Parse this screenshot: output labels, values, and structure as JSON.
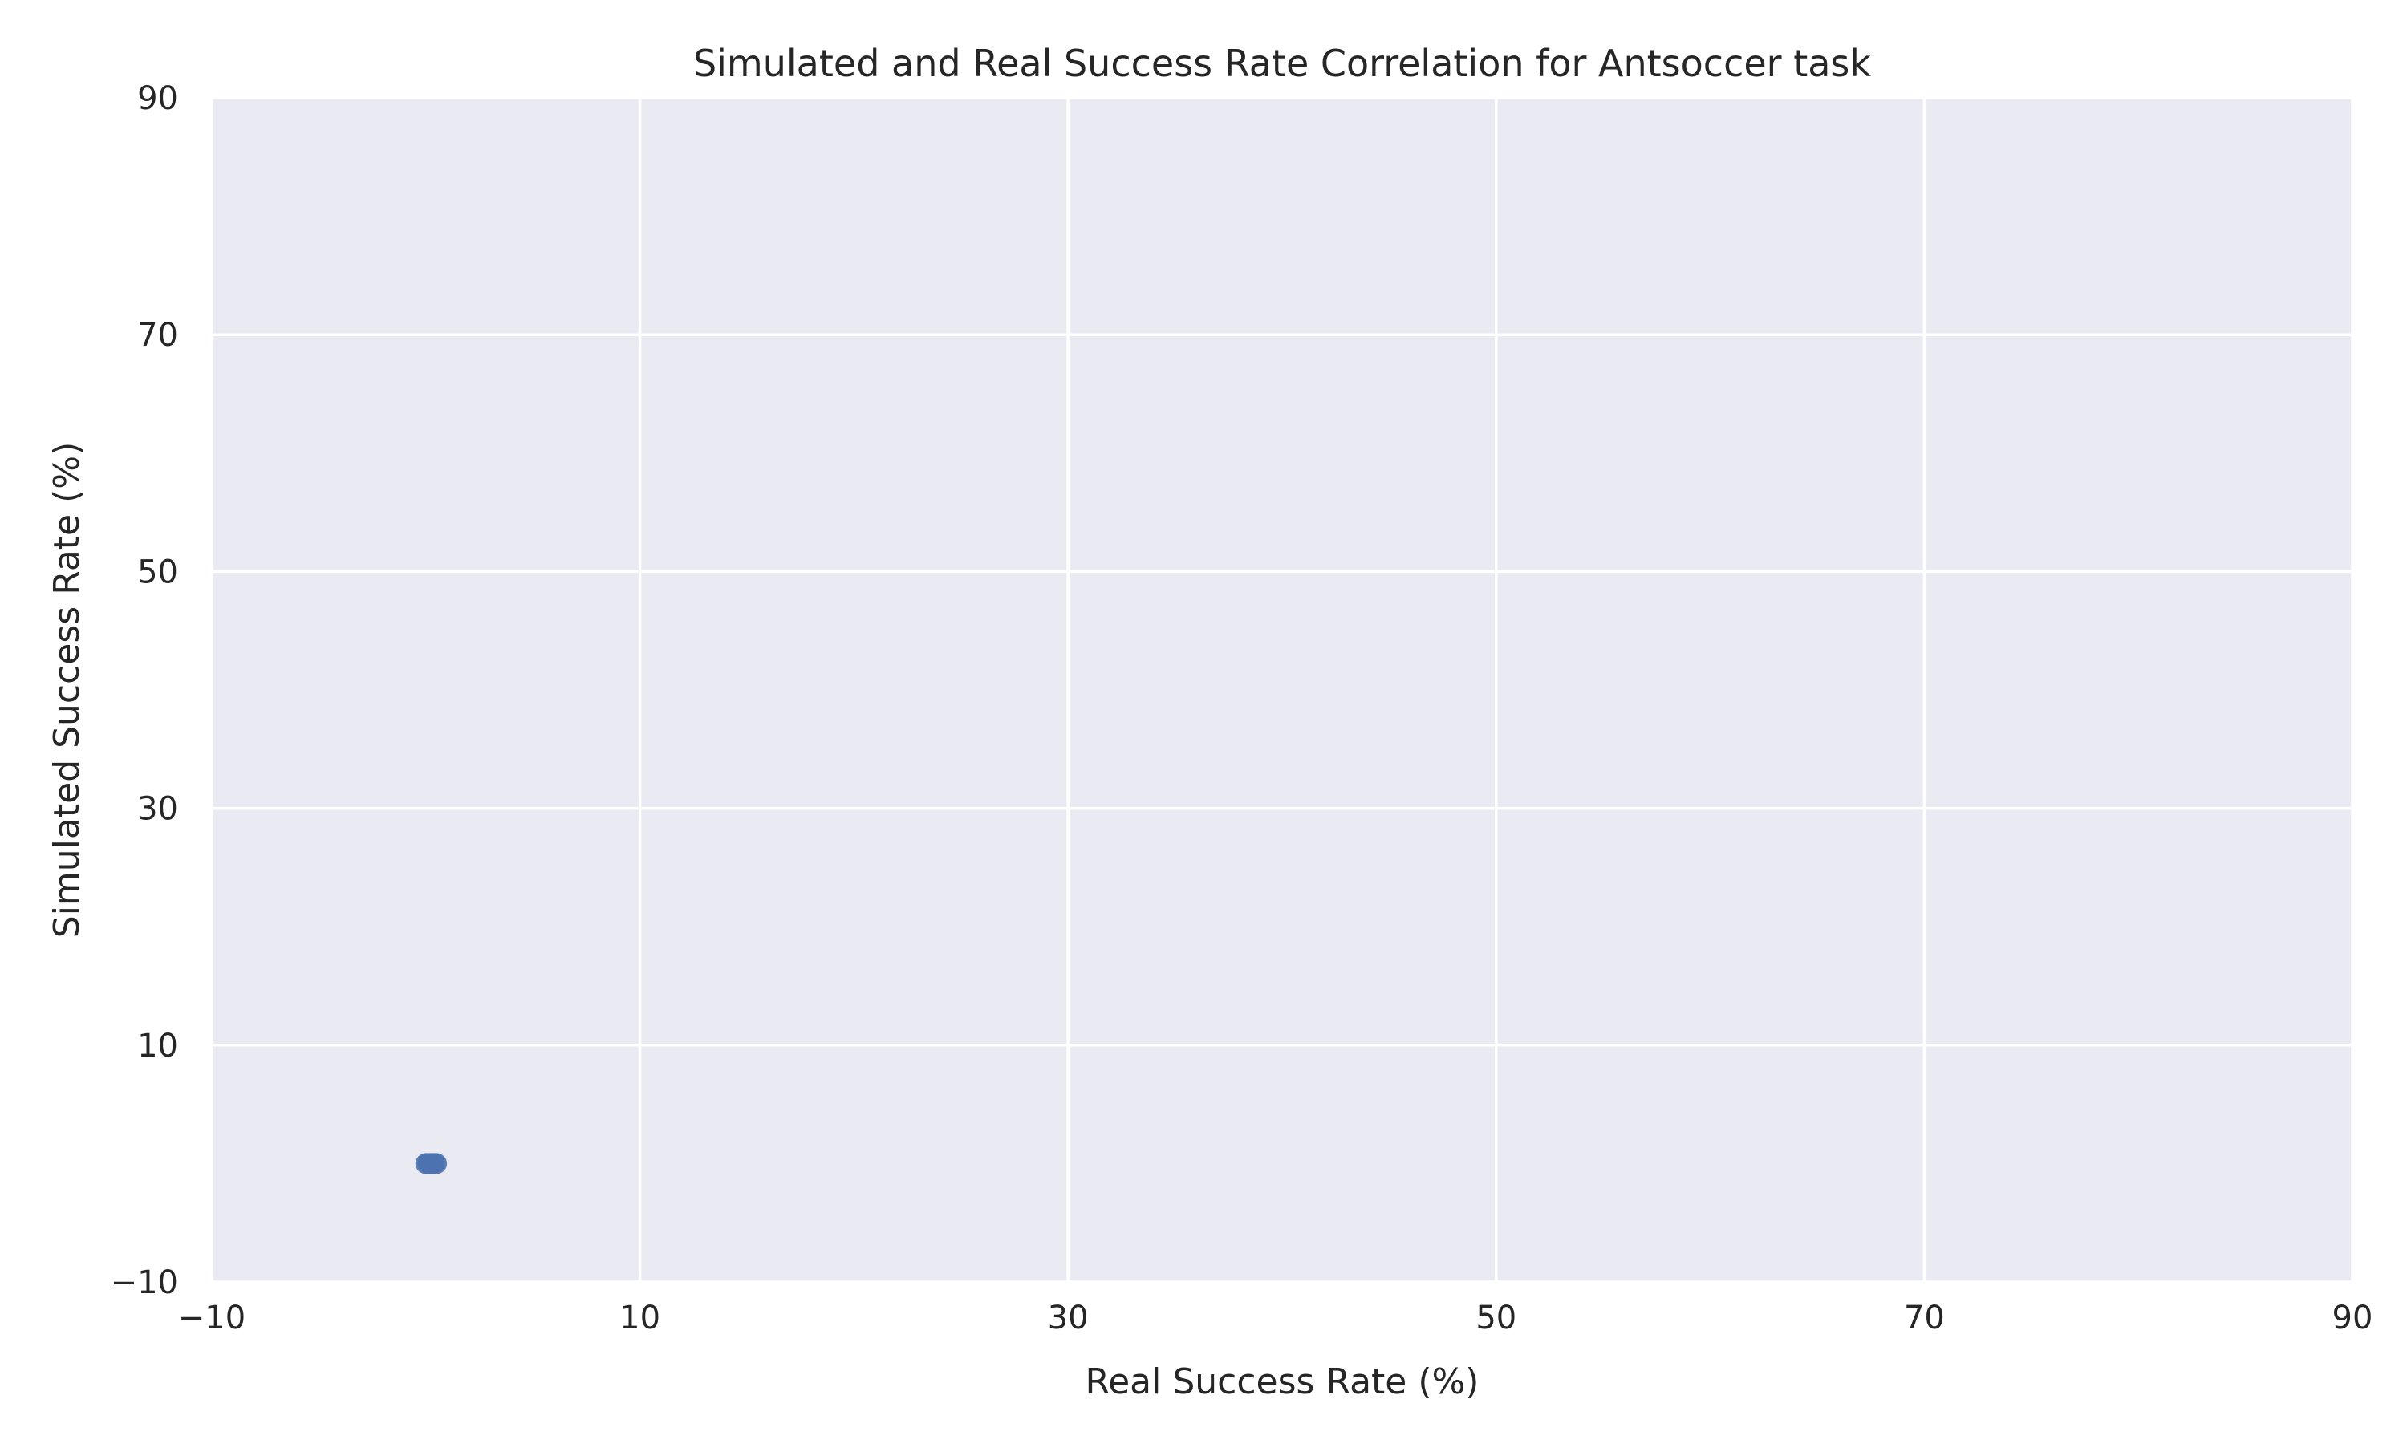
{
  "chart_data": {
    "type": "scatter",
    "title": "Simulated and Real Success Rate Correlation for Antsoccer task",
    "xlabel": "Real Success Rate (%)",
    "ylabel": "Simulated Success Rate (%)",
    "xlim": [
      -10,
      90
    ],
    "ylim": [
      -10,
      90
    ],
    "xticks": [
      -10,
      10,
      30,
      50,
      70,
      90
    ],
    "yticks": [
      -10,
      10,
      30,
      50,
      70,
      90
    ],
    "xtick_labels": [
      "−10",
      "10",
      "30",
      "50",
      "70",
      "90"
    ],
    "ytick_labels": [
      "−10",
      "10",
      "30",
      "50",
      "70",
      "90"
    ],
    "grid": true,
    "legend": "none",
    "series": [
      {
        "color": "#4c72b0",
        "points": [
          {
            "x": 0.0,
            "y": 0.0
          },
          {
            "x": 0.1,
            "y": 0.0
          },
          {
            "x": 0.2,
            "y": 0.0
          },
          {
            "x": 0.3,
            "y": 0.0
          },
          {
            "x": 0.4,
            "y": 0.0
          },
          {
            "x": 0.5,
            "y": 0.0
          }
        ]
      }
    ],
    "colors": {
      "plot_background": "#eaeaf2",
      "grid": "#ffffff",
      "text": "#262626"
    }
  }
}
